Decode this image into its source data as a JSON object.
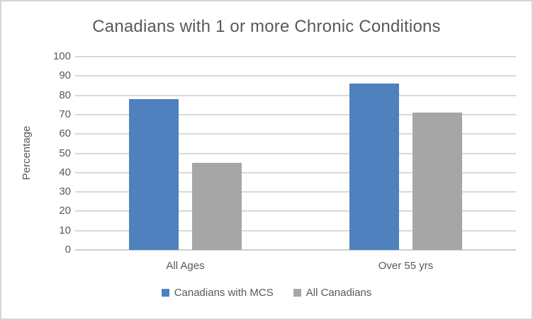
{
  "chart_data": {
    "type": "bar",
    "title": "Canadians with 1 or more Chronic Conditions",
    "xlabel": "",
    "ylabel": "Percentage",
    "categories": [
      "All Ages",
      "Over 55 yrs"
    ],
    "series": [
      {
        "name": "Canadians with MCS",
        "color": "#4E81BD",
        "values": [
          78,
          86
        ]
      },
      {
        "name": "All Canadians",
        "color": "#A6A6A6",
        "values": [
          45,
          71
        ]
      }
    ],
    "ylim": [
      0,
      100
    ],
    "yticks": [
      0,
      10,
      20,
      30,
      40,
      50,
      60,
      70,
      80,
      90,
      100
    ],
    "grid": true,
    "legend_position": "bottom",
    "text_color": "#595959",
    "gridline_color": "#D9D9D9",
    "axis_line_color": "#CFCFCF",
    "background_color": "#FFFFFF",
    "border_color": "#D5D5D5"
  }
}
